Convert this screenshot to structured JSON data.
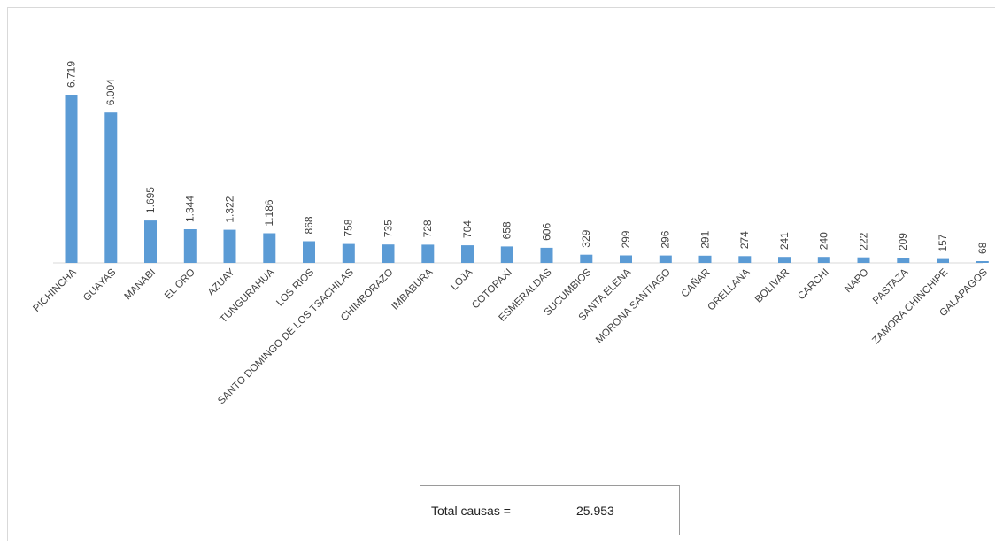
{
  "chart_data": {
    "type": "bar",
    "categories": [
      "PICHINCHA",
      "GUAYAS",
      "MANABI",
      "EL ORO",
      "AZUAY",
      "TUNGURAHUA",
      "LOS RIOS",
      "SANTO DOMINGO DE LOS TSACHILAS",
      "CHIMBORAZO",
      "IMBABURA",
      "LOJA",
      "COTOPAXI",
      "ESMERALDAS",
      "SUCUMBIOS",
      "SANTA ELENA",
      "MORONA SANTIAGO",
      "CAÑAR",
      "ORELLANA",
      "BOLIVAR",
      "CARCHI",
      "NAPO",
      "PASTAZA",
      "ZAMORA CHINCHIPE",
      "GALAPAGOS"
    ],
    "values": [
      6719,
      6004,
      1695,
      1344,
      1322,
      1186,
      868,
      758,
      735,
      728,
      704,
      658,
      606,
      329,
      299,
      296,
      291,
      274,
      241,
      240,
      222,
      209,
      157,
      68
    ],
    "value_labels": [
      "6.719",
      "6.004",
      "1.695",
      "1.344",
      "1.322",
      "1.186",
      "868",
      "758",
      "735",
      "728",
      "704",
      "658",
      "606",
      "329",
      "299",
      "296",
      "291",
      "274",
      "241",
      "240",
      "222",
      "209",
      "157",
      "68"
    ],
    "ylim": [
      0,
      7000
    ],
    "grid": false,
    "bar_color": "#5b9bd5",
    "title": "",
    "xlabel": "",
    "ylabel": ""
  },
  "total": {
    "label": "Total causas =",
    "value": "25.953"
  }
}
